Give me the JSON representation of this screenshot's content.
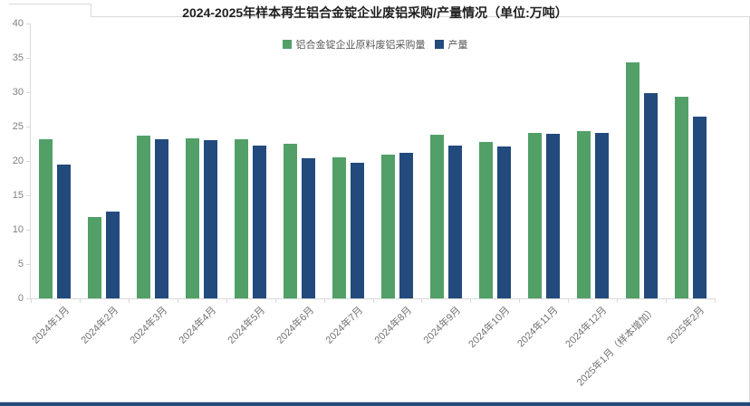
{
  "title": "2024-2025年样本再生铝合金锭企业废铝采购/产量情况（单位:万吨）",
  "colors": {
    "purchase_green": "#52a067",
    "output_navy": "#224a7d",
    "axis_gray": "#d9d9d9",
    "bottom_strip_navy": "#234b7e"
  },
  "chart_data": {
    "type": "bar",
    "title": "2024-2025年样本再生铝合金锭企业废铝采购/产量情况（单位:万吨）",
    "categories": [
      "2024年1月",
      "2024年2月",
      "2024年3月",
      "2024年4月",
      "2024年5月",
      "2024年6月",
      "2024年7月",
      "2024年8月",
      "2024年9月",
      "2024年10月",
      "2024年11月",
      "2024年12月",
      "2025年1月（样本增加）",
      "2025年2月"
    ],
    "series": [
      {
        "name": "铝合金锭企业原料废铝采购量",
        "color": "#52a067",
        "values": [
          23.2,
          11.9,
          23.7,
          23.3,
          23.2,
          22.5,
          20.5,
          20.9,
          23.8,
          22.7,
          24.1,
          24.3,
          34.3,
          29.3
        ]
      },
      {
        "name": "产量",
        "color": "#224a7d",
        "values": [
          19.5,
          12.6,
          23.2,
          23.0,
          22.2,
          20.4,
          19.7,
          21.2,
          22.2,
          22.1,
          24.0,
          24.1,
          29.9,
          26.5
        ]
      }
    ],
    "ylim": [
      0,
      40
    ],
    "yticks": [
      0,
      5,
      10,
      15,
      20,
      25,
      30,
      35,
      40
    ],
    "xlabel": "",
    "ylabel": "",
    "grid": false,
    "legend_position": "top-center"
  }
}
